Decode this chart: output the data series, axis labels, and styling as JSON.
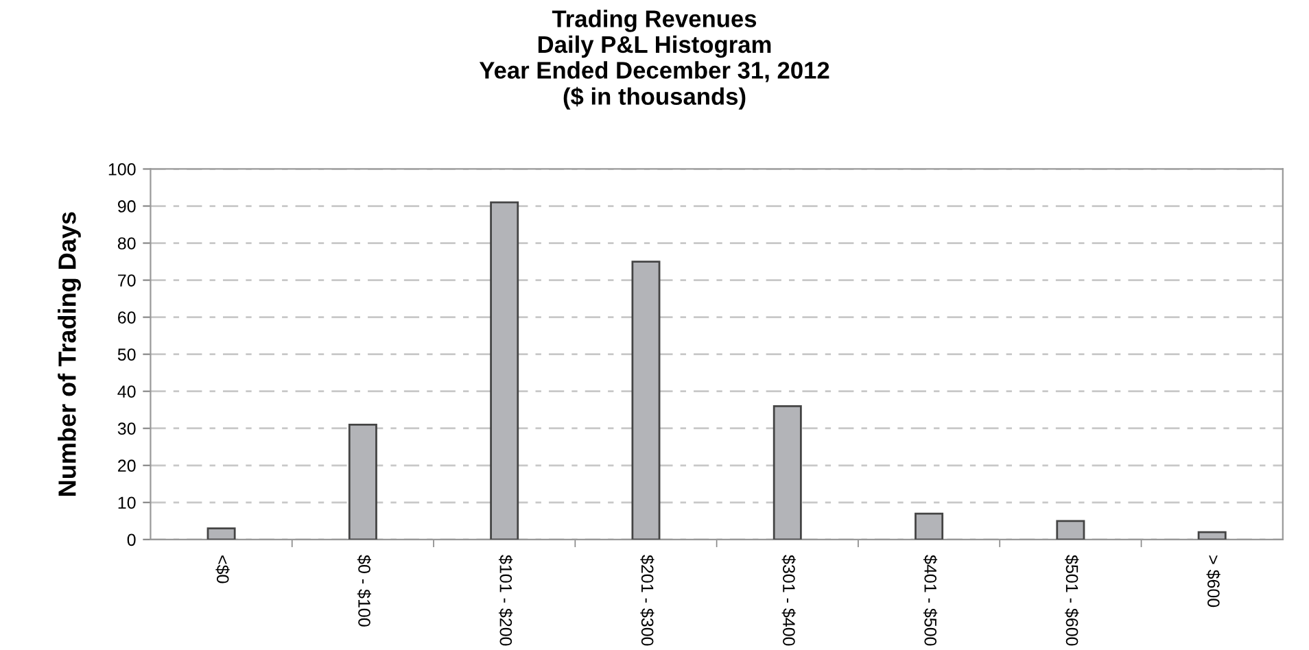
{
  "chart_data": {
    "type": "bar",
    "title": "Trading Revenues\nDaily P&L Histogram\nYear Ended December 31, 2012\n($ in thousands)",
    "ylabel": "Number of Trading Days",
    "categories": [
      "<$0",
      "$0 - $100",
      "$101 - $200",
      "$201 - $300",
      "$301 - $400",
      "$401 - $500",
      "$501 - $600",
      "> $600"
    ],
    "values": [
      3,
      31,
      91,
      75,
      36,
      7,
      5,
      2
    ],
    "color": "#b3b4b8",
    "ylim": [
      0,
      100
    ],
    "yticks": [
      0,
      10,
      20,
      30,
      40,
      50,
      60,
      70,
      80,
      90,
      100
    ],
    "grid": "y"
  }
}
